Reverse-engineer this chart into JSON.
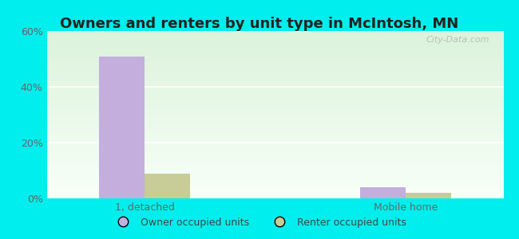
{
  "title": "Owners and renters by unit type in McIntosh, MN",
  "categories": [
    "1, detached",
    "Mobile home"
  ],
  "owner_values": [
    51,
    4
  ],
  "renter_values": [
    9,
    2
  ],
  "owner_color": "#c4aede",
  "renter_color": "#c8cc96",
  "ylim": [
    0,
    60
  ],
  "yticks": [
    0,
    20,
    40,
    60
  ],
  "ytick_labels": [
    "0%",
    "20%",
    "40%",
    "60%"
  ],
  "bar_width": 0.35,
  "group_positions": [
    1.0,
    3.0
  ],
  "background_top": "#dff0df",
  "background_bottom": "#f8fff8",
  "outer_bg": "#00eeee",
  "legend_owner": "Owner occupied units",
  "legend_renter": "Renter occupied units",
  "watermark": "City-Data.com",
  "title_fontsize": 13,
  "axis_label_fontsize": 9,
  "legend_fontsize": 9
}
